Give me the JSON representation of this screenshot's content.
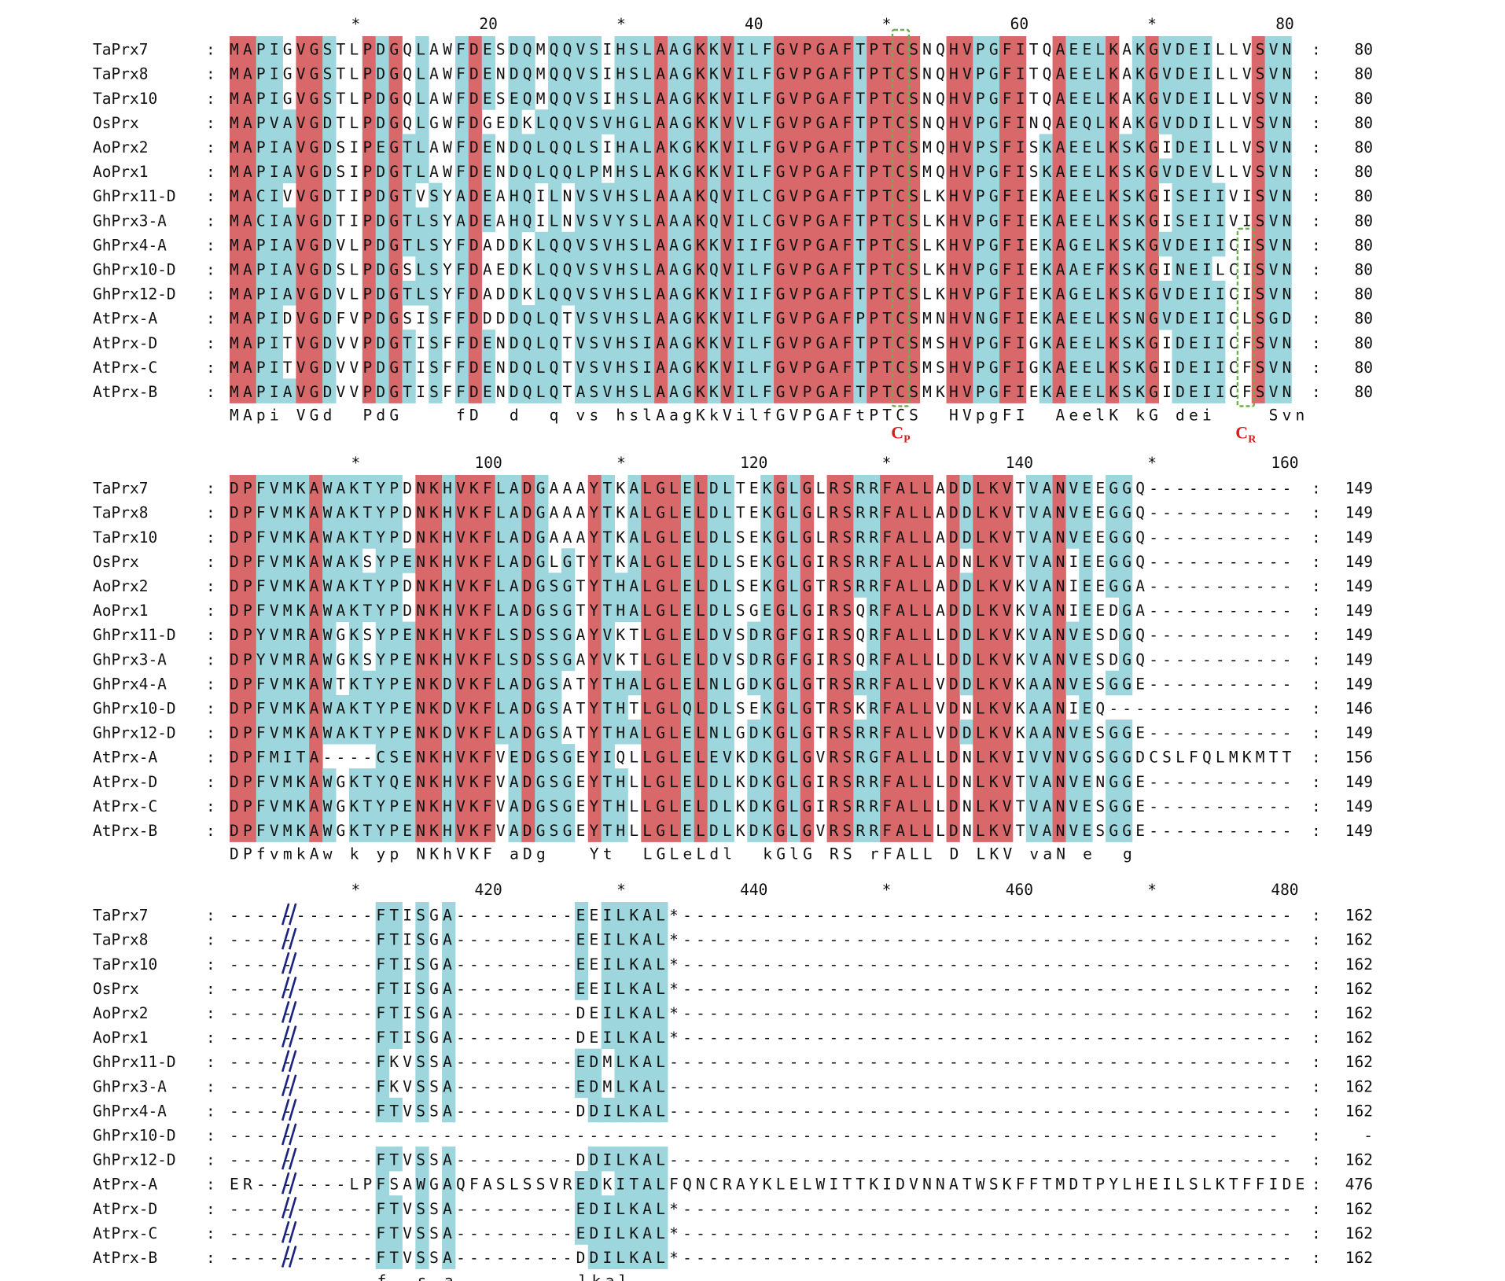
{
  "colors": {
    "identical": "#d8686a",
    "similar": "#9dd6dc",
    "motif_box": "#6ab04c",
    "motif_label": "#d4201c",
    "break_mark": "#1a237e"
  },
  "blocks": [
    {
      "ruler": [
        {
          "col": 10,
          "text": "*"
        },
        {
          "col": 20,
          "text": "20"
        },
        {
          "col": 30,
          "text": "*"
        },
        {
          "col": 40,
          "text": "40"
        },
        {
          "col": 50,
          "text": "*"
        },
        {
          "col": 60,
          "text": "60"
        },
        {
          "col": 70,
          "text": "*"
        },
        {
          "col": 80,
          "text": "80"
        }
      ],
      "rows": [
        {
          "name": "TaPrx7",
          "seq": "MAPIGVGSTLPDGQLAWFDESDQMQQVSIHSLAAGKKVILFGVPGAFTPTCSNQHVPGFITQAEELKAKGVDEILLVSVN",
          "end": "80"
        },
        {
          "name": "TaPrx8",
          "seq": "MAPIGVGSTLPDGQLAWFDENDQMQQVSIHSLAAGKKVILFGVPGAFTPTCSNQHVPGFITQAEELKAKGVDEILLVSVN",
          "end": "80"
        },
        {
          "name": "TaPrx10",
          "seq": "MAPIGVGSTLPDGQLAWFDESEQMQQVSIHSLAAGKKVILFGVPGAFTPTCSNQHVPGFITQAEELKAKGVDEILLVSVN",
          "end": "80"
        },
        {
          "name": "OsPrx",
          "seq": "MAPVAVGDTLPDGQLGWFDGEDKLQQVSVHGLAAGKKVVLFGVPGAFTPTCSNQHVPGFINQAEQLKAKGVDDILLVSVN",
          "end": "80"
        },
        {
          "name": "AoPrx2",
          "seq": "MAPIAVGDSIPEGTLAWFDENDQLQQLSIHALAKGKKVILFGVPGAFTPTCSMQHVPSFISKAEELKSKGIDEILLVSVN",
          "end": "80"
        },
        {
          "name": "AoPrx1",
          "seq": "MAPIAVGDSIPDGTLAWFDENDQLQQLPMHSLAKGKKVILFGVPGAFTPTCSMQHVPGFISKAEELKSKGVDEVLLVSVN",
          "end": "80"
        },
        {
          "name": "GhPrx11-D",
          "seq": "MACIVVGDTIPDGTVSYADEAHQILNVSVHSLAAAKQVILCGVPGAFTPTCSLKHVPGFIEKAEELKSKGISEIIVISVN",
          "end": "80"
        },
        {
          "name": "GhPrx3-A",
          "seq": "MACIAVGDTIPDGTLSYADEAHQILNVSVYSLAAAKQVILCGVPGAFTPTCSLKHVPGFIEKAEELKSKGISEIIVISVN",
          "end": "80"
        },
        {
          "name": "GhPrx4-A",
          "seq": "MAPIAVGDVLPDGTLSYFDADDKLQQVSVHSLAAGKKVIIFGVPGAFTPTCSLKHVPGFIEKAGELKSKGVDEIICISVN",
          "end": "80"
        },
        {
          "name": "GhPrx10-D",
          "seq": "MAPIAVGDSLPDGSLSYFDAEDKLQQVSVHSLAAGKQVILFGVPGAFTPTCSLKHVPGFIEKAAEFKSKGINEILCISVN",
          "end": "80"
        },
        {
          "name": "GhPrx12-D",
          "seq": "MAPIAVGDVLPDGTLSYFDADDKLQQVSVHSLAAGKKVIIFGVPGAFTPTCSLKHVPGFIEKAGELKSKGVDEIICISVN",
          "end": "80"
        },
        {
          "name": "AtPrx-A",
          "seq": "MAPIDVGDFVPDGSISFFDDDDQLQTVSVHSLAAGKKVILFGVPGAFPPTCSMNHVNGFIEKAEELKSNGVDEIICLSGD",
          "end": "80"
        },
        {
          "name": "AtPrx-D",
          "seq": "MAPITVGDVVPDGTISFFDENDQLQTVSVHSIAAGKKVILFGVPGAFTPTCSMSHVPGFIGKAEELKSKGIDEIICFSVN",
          "end": "80"
        },
        {
          "name": "AtPrx-C",
          "seq": "MAPITVGDVVPDGTISFFDENDQLQTVSVHSIAAGKKVILFGVPGAFTPTCSMSHVPGFIGKAEELKSKGIDEIICFSVN",
          "end": "80"
        },
        {
          "name": "AtPrx-B",
          "seq": "MAPIAVGDVVPDGTISFFDENDQLQTASVHSLAAGKKVILFGVPGAFTPTCSMKHVPGFIEKAEELKSKGIDEIICFSVN",
          "end": "80"
        }
      ],
      "consensus": "MApi VGd  PdG    fD  d  q vs hslAagKkVilfGVPGAFtPTCS  HVpgFI  AeelK kG dei    Svn"
    },
    {
      "ruler": [
        {
          "col": 10,
          "text": "*"
        },
        {
          "col": 20,
          "text": "100"
        },
        {
          "col": 30,
          "text": "*"
        },
        {
          "col": 40,
          "text": "120"
        },
        {
          "col": 50,
          "text": "*"
        },
        {
          "col": 60,
          "text": "140"
        },
        {
          "col": 70,
          "text": "*"
        },
        {
          "col": 80,
          "text": "160"
        }
      ],
      "rows": [
        {
          "name": "TaPrx7",
          "seq": "DPFVMKAWAKTYPDNKHVKFLADGAAAYTKALGLELDLTEKGLGLRSRRFALLADDLKVTVANVEEGGQ-----------",
          "end": "149"
        },
        {
          "name": "TaPrx8",
          "seq": "DPFVMKAWAKTYPDNKHVKFLADGAAAYTKALGLELDLTEKGLGLRSRRFALLADDLKVTVANVEEGGQ-----------",
          "end": "149"
        },
        {
          "name": "TaPrx10",
          "seq": "DPFVMKAWAKTYPDNKHVKFLADGAAAYTKALGLELDLSEKGLGLRSRRFALLADDLKVTVANVEEGGQ-----------",
          "end": "149"
        },
        {
          "name": "OsPrx",
          "seq": "DPFVMKAWAKSYPENKHVKFLADGLGTYTKALGLELDLSEKGLGIRSRRFALLADNLKVTVANIEEGGQ-----------",
          "end": "149"
        },
        {
          "name": "AoPrx2",
          "seq": "DPFVMKAWAKTYPDNKHVKFLADGSGTYTHALGLELDLSEKGLGTRSRRFALLADDLKVKVANIEEGGA-----------",
          "end": "149"
        },
        {
          "name": "AoPrx1",
          "seq": "DPFVMKAWAKTYPDNKHVKFLADGSGTYTHALGLELDLSGEGLGIRSQRFALLADDLKVKVANIEEDGA-----------",
          "end": "149"
        },
        {
          "name": "GhPrx11-D",
          "seq": "DPYVMRAWGKSYPENKHVKFLSDSSGAYVKTLGLELDVSDRGFGIRSQRFALLLDDLKVKVANVESDGQ-----------",
          "end": "149"
        },
        {
          "name": "GhPrx3-A",
          "seq": "DPYVMRAWGKSYPENKHVKFLSDSSGAYVKTLGLELDVSDRGFGIRSQRFALLLDDLKVKVANVESDGQ-----------",
          "end": "149"
        },
        {
          "name": "GhPrx4-A",
          "seq": "DPFVMKAWTKTYPENKDVKFLADGSATYTHALGLELNLGDKGLGTRSRRFALLVDDLKVKAANVESGGE-----------",
          "end": "149"
        },
        {
          "name": "GhPrx10-D",
          "seq": "DPFVMKAWAKTYPENKDVKFLADGSATYTHTLGLQLDLSEKGLGTRSKRFALLVDNLKVKAANIEQ--------------",
          "end": "146"
        },
        {
          "name": "GhPrx12-D",
          "seq": "DPFVMKAWAKTYPENKDVKFLADGSATYTHALGLELNLGDKGLGTRSRRFALLVDDLKVKAANVESGGE-----------",
          "end": "149"
        },
        {
          "name": "AtPrx-A",
          "seq": "DPFMITA----CSENKHVKFVEDGSGEYIQLLGLELEVKDKGLGVRSRGFALLLDNLKVIVVNVGSGGDCSLFQLMKMTT",
          "end": "156"
        },
        {
          "name": "AtPrx-D",
          "seq": "DPFVMKAWGKTYQENKHVKFVADGSGEYTHLLGLELDLKDKGLGIRSRRFALLLDNLKVTVANVENGGE-----------",
          "end": "149"
        },
        {
          "name": "AtPrx-C",
          "seq": "DPFVMKAWGKTYPENKHVKFVADGSGEYTHLLGLELDLKDKGLGIRSRRFALLLDNLKVTVANVESGGE-----------",
          "end": "149"
        },
        {
          "name": "AtPrx-B",
          "seq": "DPFVMKAWGKTYPENKHVKFVADGSGEYTHLLGLELDLKDKGLGVRSRRFALLLDNLKVTVANVESGGE-----------",
          "end": "149"
        }
      ],
      "consensus": "DPfvmkAw k yp NKhVKF aDg   Yt  LGLeLdl  kGlG RS rFALL D LKV vaN e  g"
    },
    {
      "ruler": [
        {
          "col": 10,
          "text": "*"
        },
        {
          "col": 20,
          "text": "420"
        },
        {
          "col": 30,
          "text": "*"
        },
        {
          "col": 40,
          "text": "440"
        },
        {
          "col": 50,
          "text": "*"
        },
        {
          "col": 60,
          "text": "460"
        },
        {
          "col": 70,
          "text": "*"
        },
        {
          "col": 80,
          "text": "480"
        }
      ],
      "rows": [
        {
          "name": "TaPrx7",
          "seq": "-----------FTISGA---------EEILKAL*----------------------------------------------",
          "end": "162"
        },
        {
          "name": "TaPrx8",
          "seq": "-----------FTISGA---------EEILKAL*----------------------------------------------",
          "end": "162"
        },
        {
          "name": "TaPrx10",
          "seq": "-----------FTISGA---------EEILKAL*----------------------------------------------",
          "end": "162"
        },
        {
          "name": "OsPrx",
          "seq": "-----------FTISGA---------EEILKAL*----------------------------------------------",
          "end": "162"
        },
        {
          "name": "AoPrx2",
          "seq": "-----------FTISGA---------DEILKAL*----------------------------------------------",
          "end": "162"
        },
        {
          "name": "AoPrx1",
          "seq": "-----------FTISGA---------DEILKAL*----------------------------------------------",
          "end": "162"
        },
        {
          "name": "GhPrx11-D",
          "seq": "-----------FKVSSA---------EDMLKAL-----------------------------------------------",
          "end": "162"
        },
        {
          "name": "GhPrx3-A",
          "seq": "-----------FKVSSA---------EDMLKAL-----------------------------------------------",
          "end": "162"
        },
        {
          "name": "GhPrx4-A",
          "seq": "-----------FTVSSA---------DDILKAL-----------------------------------------------",
          "end": "162"
        },
        {
          "name": "GhPrx10-D",
          "seq": "-------------------------------------------------------------------------------",
          "end": "-"
        },
        {
          "name": "GhPrx12-D",
          "seq": "-----------FTVSSA---------DDILKAL-----------------------------------------------",
          "end": "162"
        },
        {
          "name": "AtPrx-A",
          "seq": "ER-------LPFSAWGAQFASLSSVREDKITALFQNCRAYKLELWITTKIDVNNATWSKFFTMDTPYLHEILSLKTFFIDE",
          "end": "476"
        },
        {
          "name": "AtPrx-D",
          "seq": "-----------FTVSSA---------EDILKAL*----------------------------------------------",
          "end": "162"
        },
        {
          "name": "AtPrx-C",
          "seq": "-----------FTVSSA---------EDILKAL*----------------------------------------------",
          "end": "162"
        },
        {
          "name": "AtPrx-B",
          "seq": "-----------FTVSSA---------DDILKAL*----------------------------------------------",
          "end": "162"
        }
      ],
      "consensus": "           f  s a         lkal"
    }
  ],
  "motifs": [
    {
      "label": "C",
      "sub": "P",
      "block": 0,
      "col": 51
    },
    {
      "label": "C",
      "sub": "R",
      "block": 0,
      "col": 77
    }
  ]
}
